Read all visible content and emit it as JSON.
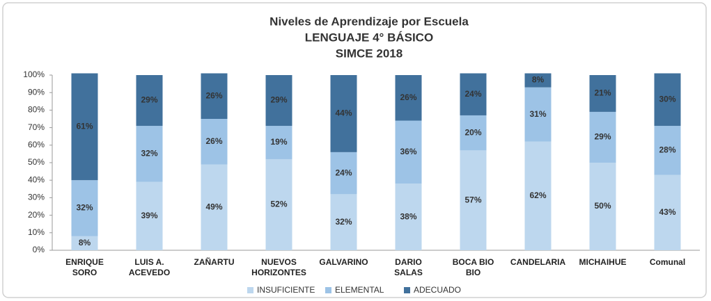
{
  "chart_data": {
    "type": "stacked_bar_percent",
    "title": [
      "Niveles de Aprendizaje por Escuela",
      "LENGUAJE 4° BÁSICO",
      "SIMCE 2018"
    ],
    "categories": [
      [
        "ENRIQUE",
        "SORO"
      ],
      [
        "LUIS A.",
        "ACEVEDO"
      ],
      [
        "ZAÑARTU"
      ],
      [
        "NUEVOS",
        "HORIZONTES"
      ],
      [
        "GALVARINO"
      ],
      [
        "DARIO",
        "SALAS"
      ],
      [
        "BOCA BIO",
        "BIO"
      ],
      [
        "CANDELARIA"
      ],
      [
        "MICHAIHUE"
      ],
      [
        "Comunal"
      ]
    ],
    "series": [
      {
        "name": "INSUFICIENTE",
        "color": "#bdd7ee",
        "values": [
          8,
          39,
          49,
          52,
          32,
          38,
          57,
          62,
          50,
          43
        ],
        "value_labels": [
          "8%",
          "39%",
          "49%",
          "52%",
          "32%",
          "38%",
          "57%",
          "62%",
          "50%",
          "43%"
        ]
      },
      {
        "name": "ELEMENTAL",
        "color": "#9dc3e6",
        "values": [
          32,
          32,
          26,
          19,
          24,
          36,
          20,
          31,
          29,
          28
        ],
        "value_labels": [
          "32%",
          "32%",
          "26%",
          "19%",
          "24%",
          "36%",
          "20%",
          "31%",
          "29%",
          "28%"
        ]
      },
      {
        "name": "ADECUADO",
        "color": "#41719c",
        "values": [
          61,
          29,
          26,
          29,
          44,
          26,
          24,
          8,
          21,
          30
        ],
        "value_labels": [
          "61%",
          "29%",
          "26%",
          "29%",
          "44%",
          "26%",
          "24%",
          "8%",
          "21%",
          "30%"
        ]
      }
    ],
    "ylim": [
      0,
      100
    ],
    "yticks": [
      {
        "value": 0,
        "label": "0%"
      },
      {
        "value": 10,
        "label": "10%"
      },
      {
        "value": 20,
        "label": "20%"
      },
      {
        "value": 30,
        "label": "30%"
      },
      {
        "value": 40,
        "label": "40%"
      },
      {
        "value": 50,
        "label": "50%"
      },
      {
        "value": 60,
        "label": "60%"
      },
      {
        "value": 70,
        "label": "70%"
      },
      {
        "value": 80,
        "label": "80%"
      },
      {
        "value": 90,
        "label": "90%"
      },
      {
        "value": 100,
        "label": "100%"
      }
    ],
    "legend": "bottom"
  }
}
